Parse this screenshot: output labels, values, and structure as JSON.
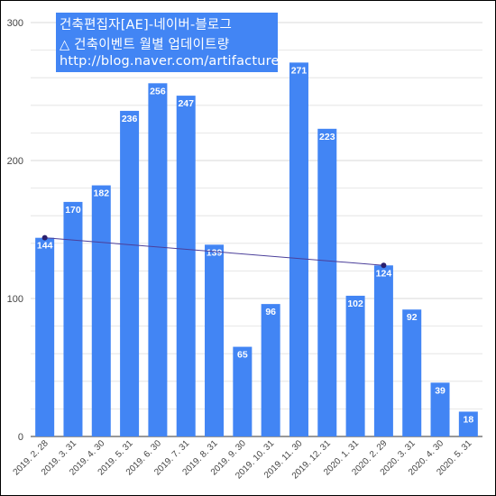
{
  "title_lines": [
    "건축편집자[AE]-네이버-블로그",
    "△ 건축이벤트 월별 업데이트량",
    "http://blog.naver.com/artifacture"
  ],
  "colors": {
    "bar": "#4285f4",
    "trend": "#4b3f9a",
    "grid": "#e0e0e0",
    "title_text": "#ffffff",
    "title_bg": "#4285f4"
  },
  "chart_data": {
    "type": "bar",
    "categories": [
      "2019. 2. 28",
      "2019. 3. 31",
      "2019. 4. 30",
      "2019. 5. 31",
      "2019. 6. 30",
      "2019. 7. 31",
      "2019. 8. 31",
      "2019. 9. 30",
      "2019. 10. 31",
      "2019. 11. 30",
      "2019. 12. 31",
      "2020. 1. 31",
      "2020. 2. 29",
      "2020. 3. 31",
      "2020. 4. 30",
      "2020. 5. 31"
    ],
    "values": [
      144,
      170,
      182,
      236,
      256,
      247,
      139,
      65,
      96,
      271,
      223,
      102,
      124,
      92,
      39,
      18
    ],
    "ylim": [
      0,
      300
    ],
    "yticks": [
      0,
      100,
      200,
      300
    ],
    "trendline": {
      "from_index": 0,
      "to_index": 12,
      "from_value": 144,
      "to_value": 124
    },
    "grid": true,
    "data_labels": true
  }
}
